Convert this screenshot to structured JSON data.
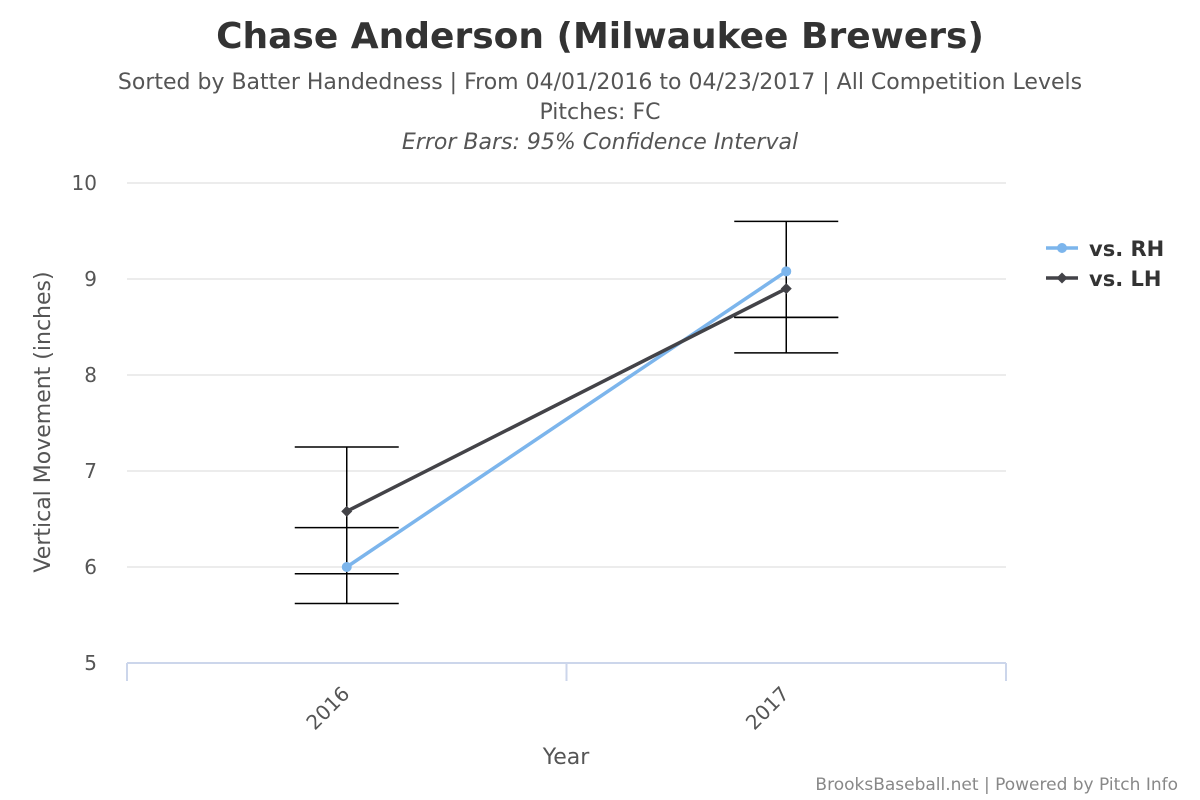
{
  "chart_data": {
    "type": "line",
    "title": "Chase Anderson (Milwaukee Brewers)",
    "subtitle_lines": [
      "Sorted by Batter Handedness | From 04/01/2016 to 04/23/2017 | All Competition Levels",
      "Pitches: FC",
      "Error Bars: 95% Confidence Interval"
    ],
    "xlabel": "Year",
    "ylabel": "Vertical Movement (inches)",
    "categories": [
      "2016",
      "2017"
    ],
    "ylim": [
      5,
      10
    ],
    "yticks": [
      5,
      6,
      7,
      8,
      9,
      10
    ],
    "grid": true,
    "legend_position": "right",
    "series": [
      {
        "name": "vs. RH",
        "color": "#7cb5ec",
        "marker": "circle",
        "values": [
          6.0,
          9.08
        ],
        "error_low": [
          5.93,
          8.6
        ],
        "error_high": [
          6.41,
          9.6
        ]
      },
      {
        "name": "vs. LH",
        "color": "#434348",
        "marker": "diamond",
        "values": [
          6.58,
          8.9
        ],
        "error_low": [
          5.62,
          8.23
        ],
        "error_high": [
          7.25,
          8.6
        ]
      }
    ],
    "error_bar_color": "#000000",
    "credits": "BrooksBaseball.net | Powered by Pitch Info"
  }
}
